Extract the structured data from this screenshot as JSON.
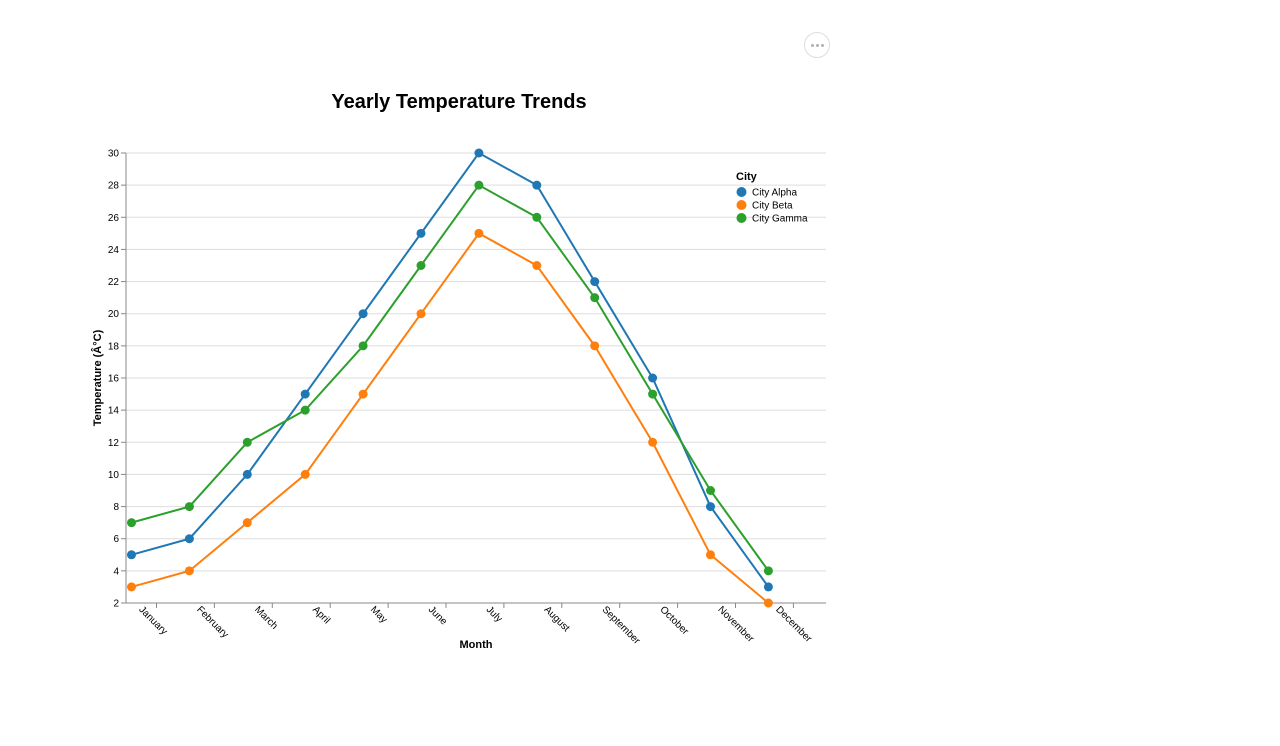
{
  "menu": {
    "icon": "ellipsis-icon"
  },
  "chart_data": {
    "type": "line",
    "title": "Yearly Temperature Trends",
    "xlabel": "Month",
    "ylabel": "Temperature (Â°C)",
    "ylim": [
      2,
      30
    ],
    "y_ticks": [
      2,
      4,
      6,
      8,
      10,
      12,
      14,
      16,
      18,
      20,
      22,
      24,
      26,
      28,
      30
    ],
    "grid": true,
    "categories": [
      "January",
      "February",
      "March",
      "April",
      "May",
      "June",
      "July",
      "August",
      "September",
      "October",
      "November",
      "December"
    ],
    "legend": {
      "title": "City",
      "position": "top-right"
    },
    "series": [
      {
        "name": "City Alpha",
        "color": "#1f77b4",
        "values": [
          5,
          6,
          10,
          15,
          20,
          25,
          30,
          28,
          22,
          16,
          8,
          3
        ]
      },
      {
        "name": "City Beta",
        "color": "#ff7f0e",
        "values": [
          3,
          4,
          7,
          10,
          15,
          20,
          25,
          23,
          18,
          12,
          5,
          2
        ]
      },
      {
        "name": "City Gamma",
        "color": "#2ca02c",
        "values": [
          7,
          8,
          12,
          14,
          18,
          23,
          28,
          26,
          21,
          15,
          9,
          4
        ]
      }
    ]
  }
}
